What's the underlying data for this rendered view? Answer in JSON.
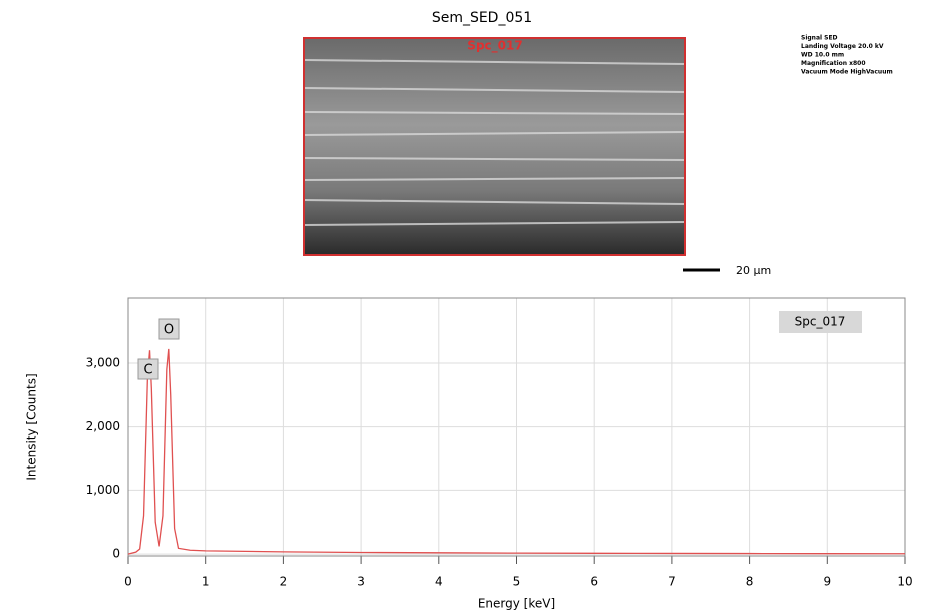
{
  "header": {
    "title": "Sem_SED_051",
    "info": [
      "Signal SED",
      "Landing Voltage 20.0 kV",
      "WD 10.0 mm",
      "Magnification x800",
      "Vacuum Mode HighVacuum"
    ],
    "scale_bar": "20 µm"
  },
  "chart_data": {
    "type": "line",
    "x_label": "Energy [keV]",
    "y_label": "Intensity [Counts]",
    "xlim": [
      0,
      10
    ],
    "ylim": [
      -30,
      4020
    ],
    "xticks": [
      0,
      1,
      2,
      3,
      4,
      5,
      6,
      7,
      8,
      9,
      10
    ],
    "yticks": [
      0,
      {
        "value": 1000,
        "label": "1,000"
      },
      {
        "value": 2000,
        "label": "2,000"
      },
      {
        "value": 3000,
        "label": "3,000"
      }
    ],
    "grid": true,
    "legend": "upper right",
    "peak_labels": [
      "C",
      "O"
    ],
    "series": [
      {
        "name": "Spc_017",
        "color": "#e05050",
        "x": [
          0,
          0.1,
          0.15,
          0.2,
          0.25,
          0.277,
          0.3,
          0.35,
          0.4,
          0.45,
          0.5,
          0.525,
          0.55,
          0.6,
          0.65,
          0.8,
          1,
          2,
          3,
          4,
          5,
          6,
          7,
          8,
          9,
          10
        ],
        "values": [
          0,
          30,
          80,
          600,
          2800,
          3200,
          2600,
          500,
          120,
          600,
          2900,
          3220,
          2500,
          400,
          90,
          60,
          50,
          35,
          25,
          20,
          15,
          12,
          10,
          8,
          6,
          5
        ]
      }
    ]
  }
}
